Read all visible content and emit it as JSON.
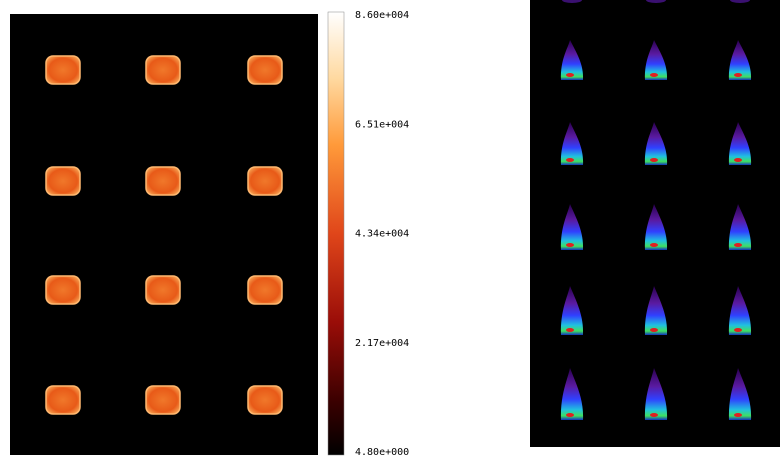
{
  "colorbar": {
    "labels": [
      "8.60e+004",
      "6.51e+004",
      "4.34e+004",
      "2.17e+004",
      "4.80e+000"
    ]
  }
}
